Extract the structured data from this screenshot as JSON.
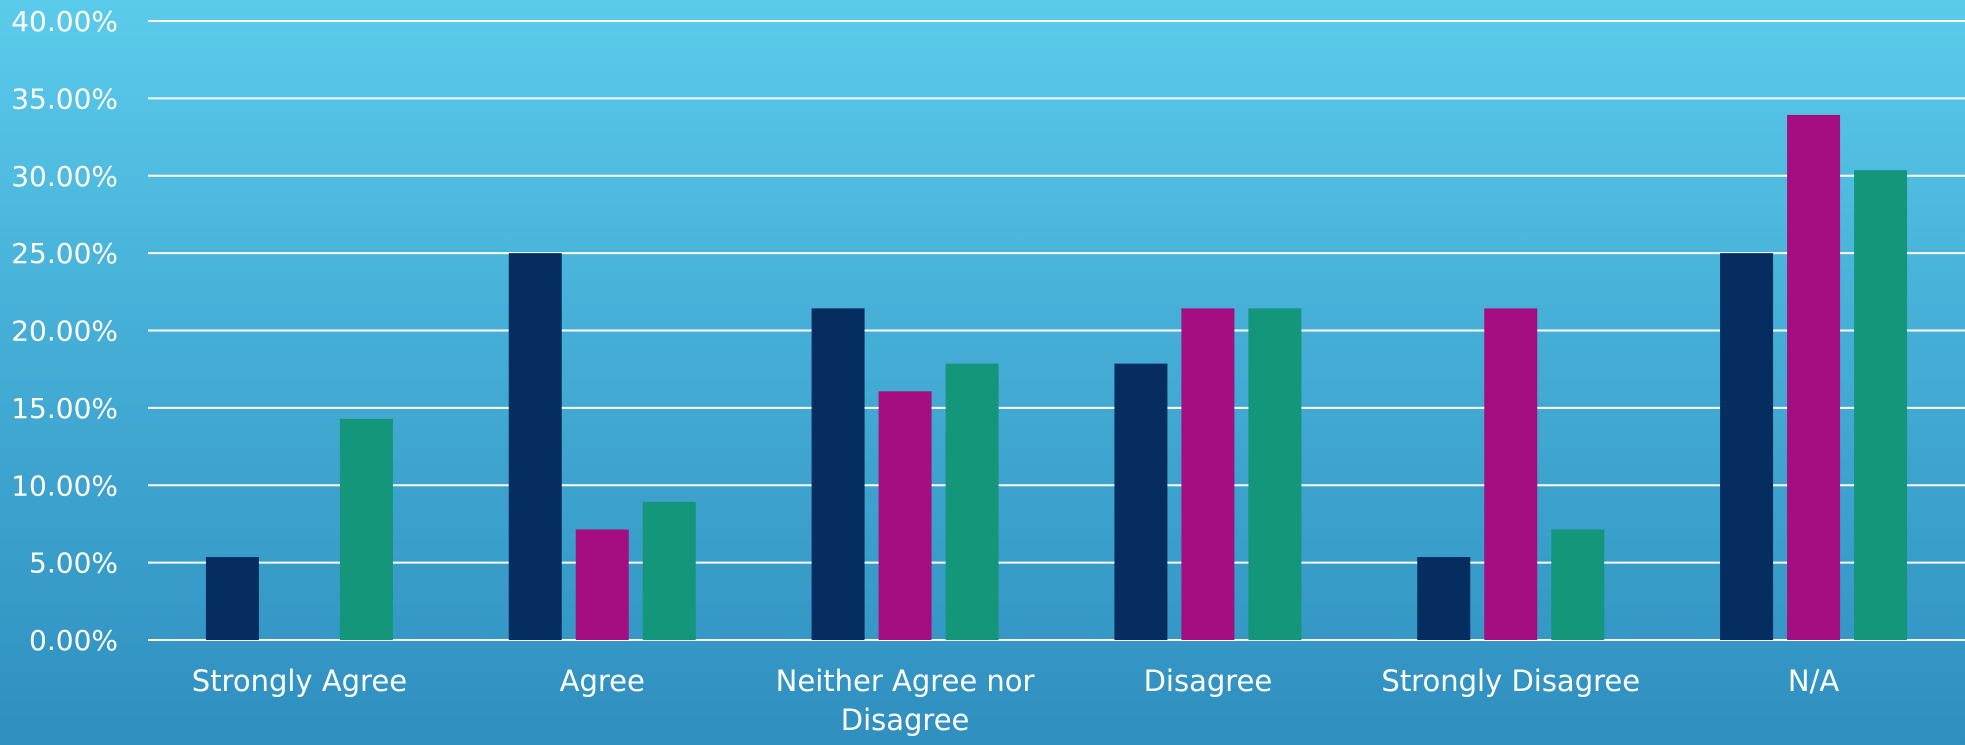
{
  "chart_data": {
    "type": "bar",
    "categories": [
      "Strongly Agree",
      "Agree",
      "Neither Agree nor Disagree",
      "Disagree",
      "Strongly Disagree",
      "N/A"
    ],
    "series": [
      {
        "values": [
          5.36,
          25.0,
          21.43,
          17.86,
          5.36,
          25.0
        ]
      },
      {
        "values": [
          0.0,
          7.14,
          16.07,
          21.43,
          21.43,
          33.93
        ]
      },
      {
        "values": [
          14.29,
          8.93,
          17.86,
          21.43,
          7.14,
          30.36
        ]
      }
    ],
    "y_ticks": [
      "0.00%",
      "5.00%",
      "10.00%",
      "15.00%",
      "20.00%",
      "25.00%",
      "30.00%",
      "35.00%",
      "40.00%"
    ],
    "ylim": [
      0,
      40
    ],
    "grid": true,
    "title": "",
    "xlabel": "",
    "ylabel": ""
  },
  "colors": {
    "series": [
      "#062d5f",
      "#a50e80",
      "#13967a"
    ],
    "grid": "#ffffff",
    "text": "#ffffff"
  }
}
